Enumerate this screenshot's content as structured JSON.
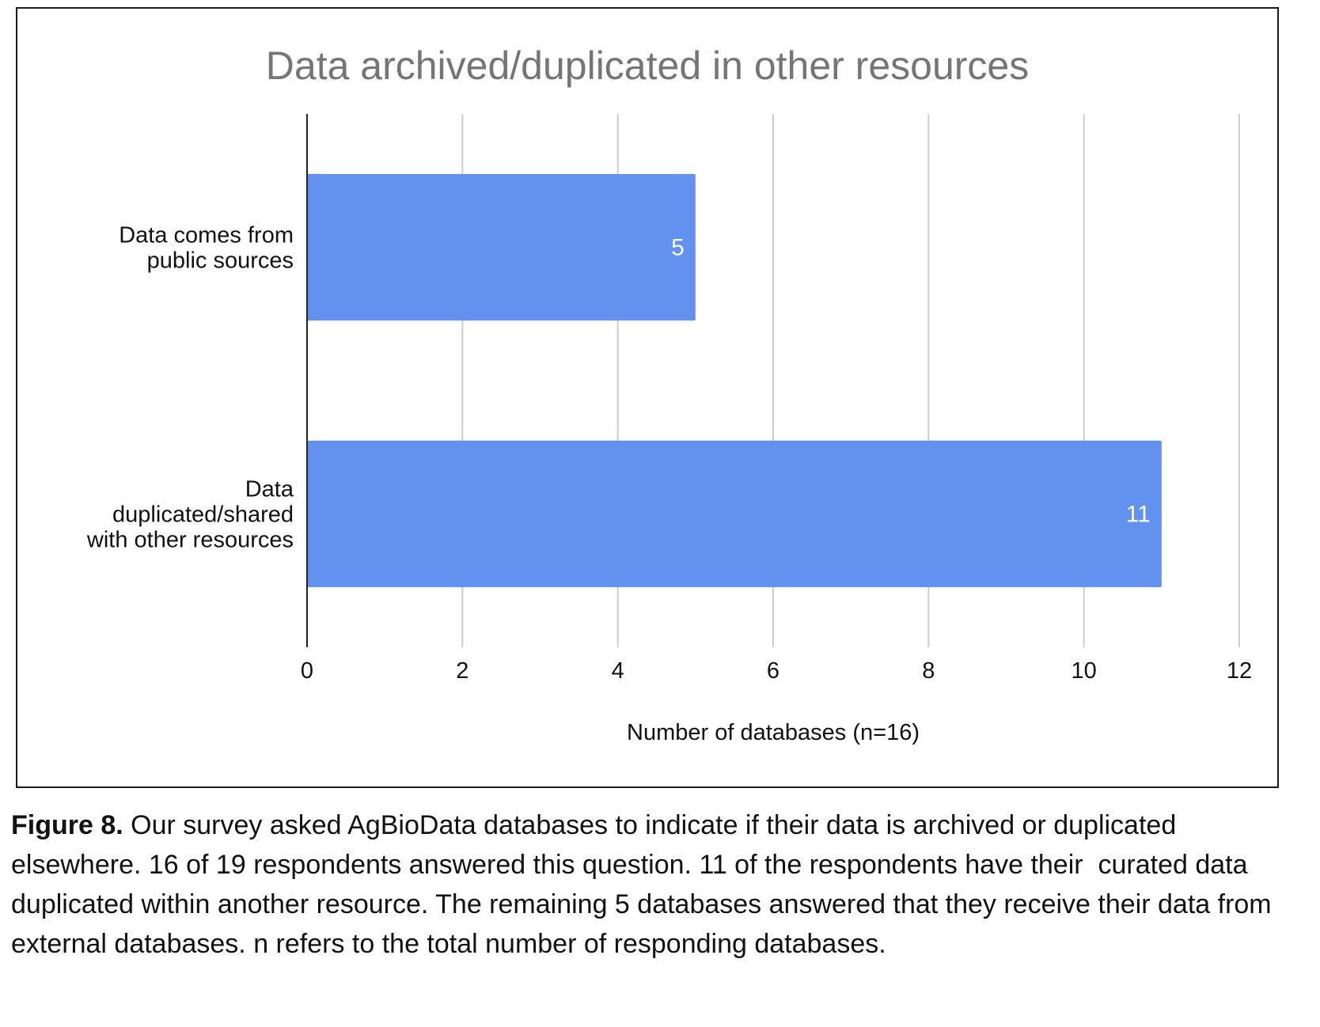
{
  "chart_data": {
    "type": "bar",
    "orientation": "horizontal",
    "title": "Data archived/duplicated in other resources",
    "categories": [
      [
        "Data comes from",
        "public sources"
      ],
      [
        "Data",
        "duplicated/shared",
        "with other resources"
      ]
    ],
    "values": [
      5,
      11
    ],
    "data_labels": [
      "5",
      "11"
    ],
    "xlabel": "Number of databases (n=16)",
    "ylabel": "",
    "xlim": [
      0,
      12
    ],
    "x_ticks": [
      0,
      2,
      4,
      6,
      8,
      10,
      12
    ],
    "grid": true,
    "bar_color": "#6391F0",
    "gridline_color": "#cccccc",
    "title_color": "#757575"
  },
  "caption": {
    "label": "Figure 8.",
    "text": " Our survey asked AgBioData databases to indicate if their data is archived or duplicated elsewhere. 16 of 19 respondents answered this question. 11 of the respondents have their  curated data duplicated within another resource. The remaining 5 databases answered that they receive their data from external databases. n refers to the total number of responding databases."
  }
}
